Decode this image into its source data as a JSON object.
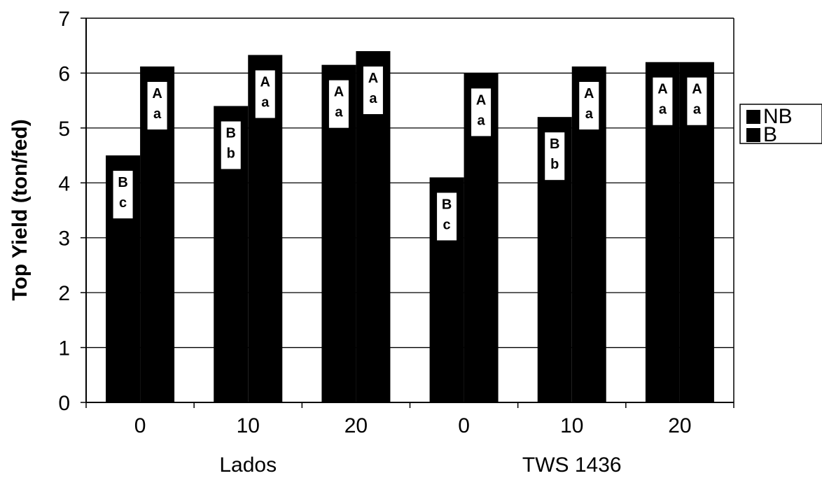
{
  "chart_data": {
    "type": "bar",
    "title": "",
    "xlabel": "",
    "ylabel": "Top Yield (ton/fed)",
    "ylim": [
      0,
      7
    ],
    "yticks": [
      0,
      1,
      2,
      3,
      4,
      5,
      6,
      7
    ],
    "grid": "horizontal",
    "legend_position": "right",
    "categories": [
      "0",
      "10",
      "20",
      "0",
      "10",
      "20"
    ],
    "groups": [
      {
        "label": "Lados",
        "category_count": 3
      },
      {
        "label": "TWS 1436",
        "category_count": 3
      }
    ],
    "series": [
      {
        "name": "NB",
        "values": [
          4.5,
          5.4,
          6.15,
          4.1,
          5.2,
          6.2
        ],
        "labels": [
          [
            "B",
            "c"
          ],
          [
            "B",
            "b"
          ],
          [
            "A",
            "a"
          ],
          [
            "B",
            "c"
          ],
          [
            "B",
            "b"
          ],
          [
            "A",
            "a"
          ]
        ]
      },
      {
        "name": "B",
        "values": [
          6.12,
          6.33,
          6.4,
          6.0,
          6.12,
          6.2
        ],
        "labels": [
          [
            "A",
            "a"
          ],
          [
            "A",
            "a"
          ],
          [
            "A",
            "a"
          ],
          [
            "A",
            "a"
          ],
          [
            "A",
            "a"
          ],
          [
            "A",
            "a"
          ]
        ]
      }
    ],
    "colors": {
      "bar": "#000000",
      "label_box": "#ffffff",
      "text": "#000000"
    }
  }
}
